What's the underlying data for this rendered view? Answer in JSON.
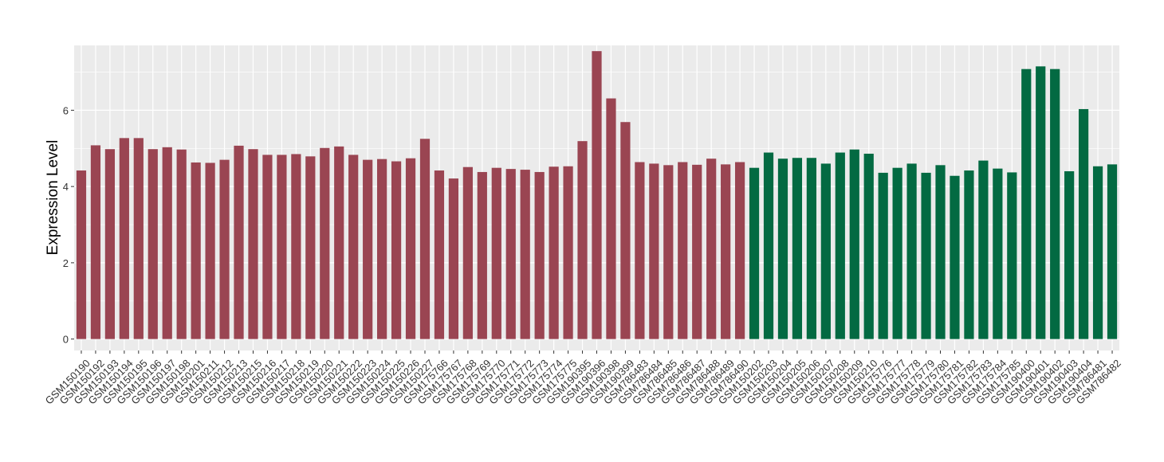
{
  "chart_data": {
    "type": "bar",
    "title": "",
    "xlabel": "",
    "ylabel": "Expression Level",
    "ylim": [
      -0.3,
      7.7
    ],
    "yticks": [
      0,
      2,
      4,
      6
    ],
    "grid": true,
    "legend": "none",
    "colors": {
      "group1": "#9a4552",
      "group2": "#036a42",
      "panel": "#ebebeb",
      "grid": "#ffffff"
    },
    "categories": [
      "GSM150190",
      "GSM150192",
      "GSM150193",
      "GSM150194",
      "GSM150195",
      "GSM150196",
      "GSM150197",
      "GSM150198",
      "GSM150201",
      "GSM150211",
      "GSM150212",
      "GSM150213",
      "GSM150215",
      "GSM150216",
      "GSM150217",
      "GSM150218",
      "GSM150219",
      "GSM150220",
      "GSM150221",
      "GSM150222",
      "GSM150223",
      "GSM150224",
      "GSM150225",
      "GSM150226",
      "GSM150227",
      "GSM175766",
      "GSM175767",
      "GSM175768",
      "GSM175769",
      "GSM175770",
      "GSM175771",
      "GSM175772",
      "GSM175773",
      "GSM175774",
      "GSM175775",
      "GSM190395",
      "GSM190396",
      "GSM190398",
      "GSM190399",
      "GSM786483",
      "GSM786484",
      "GSM786485",
      "GSM786486",
      "GSM786487",
      "GSM786488",
      "GSM786489",
      "GSM786490",
      "GSM150202",
      "GSM150203",
      "GSM150204",
      "GSM150205",
      "GSM150206",
      "GSM150207",
      "GSM150208",
      "GSM150209",
      "GSM150210",
      "GSM175776",
      "GSM175777",
      "GSM175778",
      "GSM175779",
      "GSM175780",
      "GSM175781",
      "GSM175782",
      "GSM175783",
      "GSM175784",
      "GSM175785",
      "GSM190400",
      "GSM190401",
      "GSM190402",
      "GSM190403",
      "GSM190404",
      "GSM786481",
      "GSM786482"
    ],
    "values": [
      4.42,
      5.08,
      4.98,
      5.27,
      5.27,
      4.98,
      5.03,
      4.97,
      4.63,
      4.62,
      4.7,
      5.07,
      4.98,
      4.83,
      4.83,
      4.85,
      4.79,
      5.01,
      5.05,
      4.83,
      4.7,
      4.72,
      4.66,
      4.74,
      5.25,
      4.42,
      4.21,
      4.51,
      4.38,
      4.49,
      4.46,
      4.44,
      4.38,
      4.52,
      4.53,
      5.19,
      7.55,
      6.31,
      5.69,
      4.64,
      4.6,
      4.56,
      4.64,
      4.57,
      4.73,
      4.58,
      4.64,
      4.49,
      4.89,
      4.73,
      4.75,
      4.75,
      4.6,
      4.89,
      4.97,
      4.86,
      4.36,
      4.49,
      4.6,
      4.36,
      4.56,
      4.28,
      4.42,
      4.68,
      4.47,
      4.37,
      7.08,
      7.15,
      7.08,
      4.4,
      6.03,
      4.53,
      4.58
    ],
    "groups": [
      1,
      1,
      1,
      1,
      1,
      1,
      1,
      1,
      1,
      1,
      1,
      1,
      1,
      1,
      1,
      1,
      1,
      1,
      1,
      1,
      1,
      1,
      1,
      1,
      1,
      1,
      1,
      1,
      1,
      1,
      1,
      1,
      1,
      1,
      1,
      1,
      1,
      1,
      1,
      1,
      1,
      1,
      1,
      1,
      1,
      1,
      1,
      2,
      2,
      2,
      2,
      2,
      2,
      2,
      2,
      2,
      2,
      2,
      2,
      2,
      2,
      2,
      2,
      2,
      2,
      2,
      2,
      2,
      2,
      2,
      2,
      2,
      2
    ]
  }
}
